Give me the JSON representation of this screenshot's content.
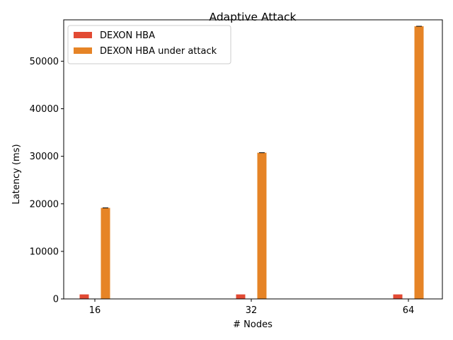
{
  "chart_data": {
    "type": "bar",
    "title": "Adaptive Attack",
    "xlabel": "# Nodes",
    "ylabel": "Latency (ms)",
    "categories": [
      "16",
      "32",
      "64"
    ],
    "series": [
      {
        "name": "DEXON HBA",
        "values": [
          950,
          950,
          950
        ],
        "color": "#e24a33"
      },
      {
        "name": "DEXON HBA under attack",
        "values": [
          19150,
          30750,
          57350
        ],
        "color": "#e68426"
      }
    ],
    "ylim": [
      0,
      58700
    ],
    "yticks": [
      0,
      10000,
      20000,
      30000,
      40000,
      50000
    ],
    "legend": "upper-left",
    "grid": false
  }
}
